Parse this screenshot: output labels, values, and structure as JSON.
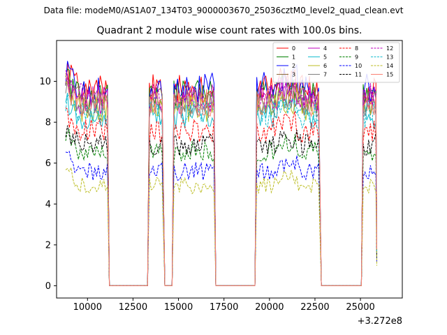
{
  "chart_data": {
    "type": "line",
    "suptitle": "Data file: modeM0/AS1A07_134T03_9000003670_25036cztM0_level2_quad_clean.evt",
    "title": "Quadrant 2 module wise count rates with 100.0s bins.",
    "xlabel": "",
    "ylabel": "",
    "x_offset_label": "+3.272e8",
    "xlim": [
      8300,
      27300
    ],
    "ylim": [
      -0.6,
      12.0
    ],
    "xticks": [
      10000,
      12500,
      15000,
      17500,
      20000,
      22500,
      25000
    ],
    "xtick_labels": [
      "10000",
      "12500",
      "15000",
      "17500",
      "20000",
      "22500",
      "25000"
    ],
    "yticks": [
      0,
      2,
      4,
      6,
      8,
      10
    ],
    "ytick_labels": [
      "0",
      "2",
      "4",
      "6",
      "8",
      "10"
    ],
    "gaps": [
      {
        "from": 11200,
        "to": 13300
      },
      {
        "from": 14250,
        "to": 14650
      },
      {
        "from": 17050,
        "to": 19200
      },
      {
        "from": 22850,
        "to": 25050
      }
    ],
    "segments": [
      {
        "start": 8800,
        "end": 11100
      },
      {
        "start": 13400,
        "end": 14150
      },
      {
        "start": 14750,
        "end": 16950
      },
      {
        "start": 19300,
        "end": 22750
      },
      {
        "start": 25150,
        "end": 25850
      }
    ],
    "legend_location": "upper right",
    "series": [
      {
        "name": "0",
        "color": "#ff0000",
        "style": "solid",
        "level": 9.6
      },
      {
        "name": "1",
        "color": "#008000",
        "style": "solid",
        "level": 9.3
      },
      {
        "name": "2",
        "color": "#0000ff",
        "style": "solid",
        "level": 9.7
      },
      {
        "name": "3",
        "color": "#8c6d3f",
        "style": "solid",
        "level": 9.0
      },
      {
        "name": "4",
        "color": "#bf00bf",
        "style": "solid",
        "level": 9.1
      },
      {
        "name": "5",
        "color": "#17becf",
        "style": "solid",
        "level": 8.3
      },
      {
        "name": "6",
        "color": "#bcbd22",
        "style": "solid",
        "level": 8.7
      },
      {
        "name": "7",
        "color": "#7f7f7f",
        "style": "solid",
        "level": 8.9
      },
      {
        "name": "8",
        "color": "#ff0000",
        "style": "dashed",
        "level": 7.6
      },
      {
        "name": "9",
        "color": "#008000",
        "style": "dashed",
        "level": 6.6
      },
      {
        "name": "10",
        "color": "#0000ff",
        "style": "dashed",
        "level": 5.6
      },
      {
        "name": "11",
        "color": "#000000",
        "style": "dashed",
        "level": 6.9
      },
      {
        "name": "12",
        "color": "#bf00bf",
        "style": "dashed",
        "level": 9.2
      },
      {
        "name": "13",
        "color": "#17becf",
        "style": "dashed",
        "level": 8.4
      },
      {
        "name": "14",
        "color": "#bcbd22",
        "style": "dashed",
        "level": 4.9
      },
      {
        "name": "15",
        "color": "#fa8072",
        "style": "solid",
        "level": 9.0
      }
    ]
  }
}
